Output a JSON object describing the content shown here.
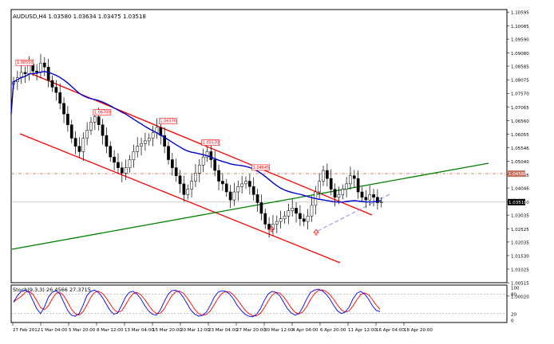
{
  "window": {
    "symbol_line": "AUDUSD,H4  1.03580 1.03634 1.03475 1.03518"
  },
  "colors": {
    "candle": "#000000",
    "channel": "#ff0000",
    "trendline": "#008000",
    "moving_average": "#0000cc",
    "support_dashed": "#8080ff",
    "resistance_dotted": "#c87060",
    "stoch_main": "#0000ff",
    "stoch_signal": "#ff0000",
    "label_border": "#ff0000"
  },
  "chart_data": [
    {
      "type": "candlestick",
      "title": "AUDUSD,H4  1.03580 1.03634 1.03475 1.03518",
      "ylim": [
        1.0052,
        1.1069
      ],
      "y_ticks": [
        "1.10595",
        "1.10085",
        "1.09590",
        "1.09080",
        "1.08585",
        "1.08075",
        "1.07570",
        "1.07065",
        "1.06560",
        "1.06055",
        "1.05546",
        "1.05040",
        "1.04535",
        "1.04046",
        "1.03530",
        "1.03035",
        "1.02525",
        "1.02035",
        "1.01530",
        "1.01025",
        "1.00515",
        "1.00020"
      ],
      "x_ticks": [
        "27 Feb 2012",
        "1 Mar 04:00",
        "5 Mar 20:00",
        "8 Mar 12:00",
        "13 Mar 04:00",
        "15 Mar 20:00",
        "20 Mar 12:00",
        "23 Mar 04:00",
        "27 Mar 20:00",
        "30 Mar 12:00",
        "4 Apr 04:00",
        "6 Apr 20:00",
        "11 Apr 12:00",
        "16 Apr 04:00",
        "18 Apr 20:00"
      ],
      "price_labels": [
        {
          "text": "1.08550",
          "bar": 1
        },
        {
          "text": "1.06700",
          "bar": 21
        },
        {
          "text": "1.06370",
          "bar": 38
        },
        {
          "text": "1.05570",
          "bar": 49
        },
        {
          "text": "1.04645",
          "bar": 62
        }
      ],
      "current_price_label": "1.03518",
      "resistance_price_label": "1.04580",
      "resistance_level": 1.0458,
      "close": [
        1.08,
        1.0815,
        1.0835,
        1.083,
        1.0865,
        1.084,
        1.0835,
        1.087,
        1.0855,
        1.0805,
        1.078,
        1.076,
        1.072,
        1.068,
        1.064,
        1.059,
        1.056,
        1.054,
        1.059,
        1.062,
        1.065,
        1.067,
        1.064,
        1.06,
        1.056,
        1.052,
        1.05,
        1.048,
        1.046,
        1.048,
        1.051,
        1.054,
        1.056,
        1.057,
        1.058,
        1.059,
        1.061,
        1.063,
        1.06,
        1.056,
        1.051,
        1.048,
        1.045,
        1.042,
        1.038,
        1.04,
        1.043,
        1.046,
        1.049,
        1.052,
        1.054,
        1.051,
        1.047,
        1.043,
        1.042,
        1.039,
        1.036,
        1.039,
        1.041,
        1.042,
        1.043,
        1.041,
        1.038,
        1.035,
        1.031,
        1.027,
        1.025,
        1.027,
        1.028,
        1.029,
        1.03,
        1.032,
        1.033,
        1.031,
        1.029,
        1.028,
        1.03,
        1.034,
        1.039,
        1.043,
        1.047,
        1.044,
        1.04,
        1.037,
        1.038,
        1.04,
        1.042,
        1.045,
        1.044,
        1.039,
        1.037,
        1.036,
        1.038,
        1.037,
        1.035,
        1.0352
      ],
      "indicator": {
        "name": "Stoch(9,3,3)",
        "label": "Stoch(9,3,3) 26.4566 27.3715",
        "ylim": [
          0,
          100
        ],
        "levels": [
          80,
          20
        ],
        "level_labels": [
          "100",
          "80",
          "20",
          "0"
        ],
        "main": [
          55,
          75,
          88,
          92,
          85,
          60,
          35,
          20,
          40,
          70,
          85,
          90,
          80,
          55,
          30,
          15,
          12,
          20,
          45,
          75,
          88,
          92,
          85,
          70,
          50,
          30,
          18,
          22,
          45,
          70,
          85,
          88,
          80,
          65,
          45,
          28,
          18,
          15,
          30,
          55,
          78,
          90,
          92,
          85,
          70,
          50,
          30,
          18,
          12,
          15,
          25,
          45,
          70,
          85,
          90,
          88,
          80,
          65,
          45,
          30,
          18,
          12,
          10,
          18,
          35,
          60,
          80,
          88,
          85,
          75,
          55,
          35,
          22,
          15,
          20,
          40,
          65,
          85,
          92,
          95,
          90,
          80,
          65,
          45,
          28,
          20,
          25,
          40,
          65,
          82,
          88,
          80,
          65,
          45,
          30,
          26
        ]
      }
    }
  ]
}
